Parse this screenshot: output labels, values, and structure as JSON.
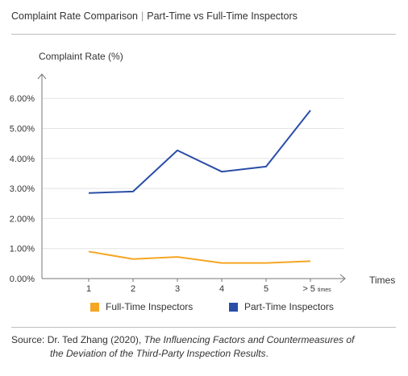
{
  "header": {
    "title": "Complaint Rate Comparison",
    "separator": "|",
    "subtitle": "Part-Time vs Full-Time Inspectors"
  },
  "chart_data": {
    "type": "line",
    "title": "Complaint Rate Comparison | Part-Time vs Full-Time Inspectors",
    "ylabel": "Complaint Rate (%)",
    "xlabel": "Times",
    "categories": [
      "1",
      "2",
      "3",
      "4",
      "5",
      "> 5"
    ],
    "last_category_suffix": "times",
    "ylim": [
      0,
      6.5
    ],
    "yticks": [
      "0.00%",
      "1.00%",
      "2.00%",
      "3.00%",
      "4.00%",
      "5.00%",
      "6.00%"
    ],
    "ytick_values": [
      0,
      1,
      2,
      3,
      4,
      5,
      6
    ],
    "grid": true,
    "legend_position": "bottom",
    "series": [
      {
        "name": "Full-Time Inspectors",
        "color": "#f5a623",
        "values": [
          0.9,
          0.65,
          0.72,
          0.52,
          0.52,
          0.58
        ]
      },
      {
        "name": "Part-Time Inspectors",
        "color": "#2a4ea8",
        "values": [
          2.85,
          2.9,
          4.27,
          3.56,
          3.73,
          5.6
        ]
      }
    ]
  },
  "source": {
    "prefix": "Source: Dr. Ted Zhang (2020), ",
    "title_line1": "The Influencing Factors and Countermeasures of",
    "title_line2": "the Deviation of the Third-Party Inspection Results",
    "suffix": "."
  }
}
